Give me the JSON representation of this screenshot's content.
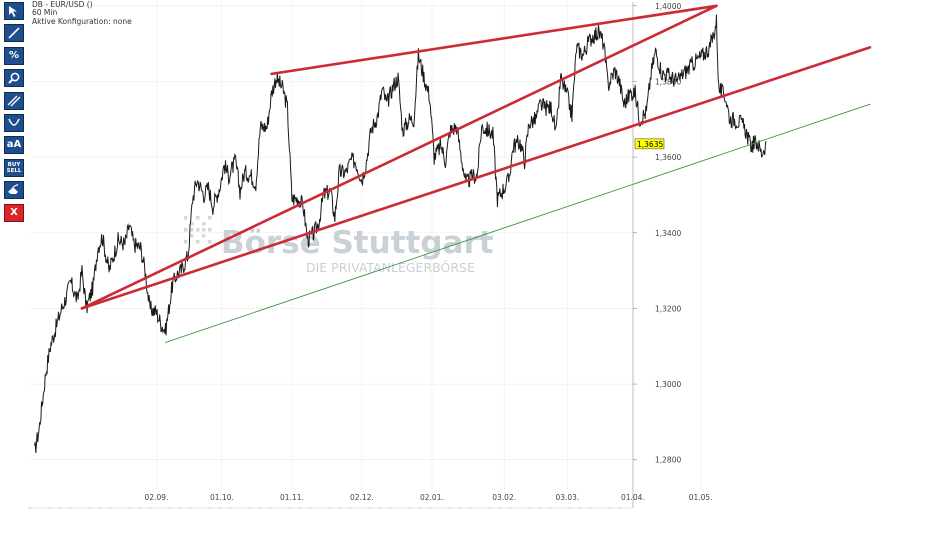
{
  "header": {
    "instrument": "DB - EUR/USD ()",
    "interval": "60 Min",
    "config": "Aktive Konfiguration: none"
  },
  "toolbar": {
    "tools": [
      {
        "name": "cursor-tool",
        "icon": "cursor-arrow-icon"
      },
      {
        "name": "line-tool",
        "icon": "line-icon"
      },
      {
        "name": "percent-tool",
        "icon": "percent-icon",
        "label": "%"
      },
      {
        "name": "zoom-tool",
        "icon": "magnifier-icon"
      },
      {
        "name": "channel-tool",
        "icon": "parallel-lines-icon"
      },
      {
        "name": "arc-tool",
        "icon": "arc-icon"
      },
      {
        "name": "text-tool",
        "icon": "text-icon",
        "label": "aA"
      },
      {
        "name": "buy-sell-tool",
        "icon": "buy-sell-icon",
        "label_top": "BUY",
        "label_bottom": "SELL"
      },
      {
        "name": "eraser-tool",
        "icon": "eraser-icon"
      },
      {
        "name": "close-tool",
        "icon": "close-icon",
        "label": "X"
      }
    ],
    "colors": {
      "button": "#1f4e8c",
      "close": "#d8262b"
    }
  },
  "watermark": {
    "brand": "Börse Stuttgart",
    "tagline": "DIE PRIVATANLEGERBÖRSE"
  },
  "chart_data": {
    "type": "line",
    "series": [
      {
        "points": [
          [
            "2013-07-10",
            1.282
          ],
          [
            "2013-07-12",
            1.288
          ],
          [
            "2013-07-15",
            1.303
          ],
          [
            "2013-07-17",
            1.31
          ],
          [
            "2013-07-19",
            1.314
          ],
          [
            "2013-07-22",
            1.32
          ],
          [
            "2013-07-24",
            1.323
          ],
          [
            "2013-07-26",
            1.327
          ],
          [
            "2013-07-29",
            1.322
          ],
          [
            "2013-07-31",
            1.33
          ],
          [
            "2013-08-02",
            1.32
          ],
          [
            "2013-08-05",
            1.326
          ],
          [
            "2013-08-07",
            1.336
          ],
          [
            "2013-08-09",
            1.339
          ],
          [
            "2013-08-12",
            1.33
          ],
          [
            "2013-08-14",
            1.334
          ],
          [
            "2013-08-16",
            1.338
          ],
          [
            "2013-08-19",
            1.337
          ],
          [
            "2013-08-21",
            1.342
          ],
          [
            "2013-08-23",
            1.337
          ],
          [
            "2013-08-26",
            1.336
          ],
          [
            "2013-08-28",
            1.33
          ],
          [
            "2013-08-30",
            1.32
          ],
          [
            "2013-09-02",
            1.319
          ],
          [
            "2013-09-04",
            1.316
          ],
          [
            "2013-09-06",
            1.314
          ],
          [
            "2013-09-09",
            1.326
          ],
          [
            "2013-09-11",
            1.329
          ],
          [
            "2013-09-13",
            1.33
          ],
          [
            "2013-09-16",
            1.334
          ],
          [
            "2013-09-18",
            1.349
          ],
          [
            "2013-09-20",
            1.354
          ],
          [
            "2013-09-23",
            1.35
          ],
          [
            "2013-09-25",
            1.352
          ],
          [
            "2013-09-27",
            1.347
          ],
          [
            "2013-09-30",
            1.352
          ],
          [
            "2013-10-02",
            1.358
          ],
          [
            "2013-10-04",
            1.355
          ],
          [
            "2013-10-07",
            1.359
          ],
          [
            "2013-10-09",
            1.351
          ],
          [
            "2013-10-11",
            1.356
          ],
          [
            "2013-10-14",
            1.355
          ],
          [
            "2013-10-16",
            1.353
          ],
          [
            "2013-10-18",
            1.368
          ],
          [
            "2013-10-21",
            1.368
          ],
          [
            "2013-10-23",
            1.377
          ],
          [
            "2013-10-25",
            1.381
          ],
          [
            "2013-10-28",
            1.378
          ],
          [
            "2013-10-30",
            1.373
          ],
          [
            "2013-11-01",
            1.349
          ],
          [
            "2013-11-04",
            1.349
          ],
          [
            "2013-11-06",
            1.347
          ],
          [
            "2013-11-08",
            1.338
          ],
          [
            "2013-11-11",
            1.34
          ],
          [
            "2013-11-13",
            1.343
          ],
          [
            "2013-11-15",
            1.35
          ],
          [
            "2013-11-18",
            1.351
          ],
          [
            "2013-11-20",
            1.344
          ],
          [
            "2013-11-22",
            1.356
          ],
          [
            "2013-11-25",
            1.356
          ],
          [
            "2013-11-27",
            1.359
          ],
          [
            "2013-11-29",
            1.359
          ],
          [
            "2013-12-02",
            1.354
          ],
          [
            "2013-12-04",
            1.359
          ],
          [
            "2013-12-06",
            1.367
          ],
          [
            "2013-12-09",
            1.371
          ],
          [
            "2013-12-11",
            1.378
          ],
          [
            "2013-12-13",
            1.374
          ],
          [
            "2013-12-16",
            1.379
          ],
          [
            "2013-12-18",
            1.381
          ],
          [
            "2013-12-20",
            1.367
          ],
          [
            "2013-12-23",
            1.37
          ],
          [
            "2013-12-25",
            1.37
          ],
          [
            "2013-12-27",
            1.387
          ],
          [
            "2013-12-30",
            1.38
          ],
          [
            "2014-01-01",
            1.376
          ],
          [
            "2014-01-03",
            1.36
          ],
          [
            "2014-01-06",
            1.363
          ],
          [
            "2014-01-08",
            1.359
          ],
          [
            "2014-01-10",
            1.367
          ],
          [
            "2014-01-13",
            1.368
          ],
          [
            "2014-01-15",
            1.36
          ],
          [
            "2014-01-17",
            1.353
          ],
          [
            "2014-01-20",
            1.355
          ],
          [
            "2014-01-22",
            1.355
          ],
          [
            "2014-01-24",
            1.368
          ],
          [
            "2014-01-27",
            1.367
          ],
          [
            "2014-01-29",
            1.366
          ],
          [
            "2014-01-31",
            1.349
          ],
          [
            "2014-02-03",
            1.352
          ],
          [
            "2014-02-05",
            1.354
          ],
          [
            "2014-02-07",
            1.363
          ],
          [
            "2014-02-10",
            1.364
          ],
          [
            "2014-02-12",
            1.359
          ],
          [
            "2014-02-14",
            1.369
          ],
          [
            "2014-02-17",
            1.37
          ],
          [
            "2014-02-19",
            1.374
          ],
          [
            "2014-02-21",
            1.373
          ],
          [
            "2014-02-24",
            1.373
          ],
          [
            "2014-02-26",
            1.366
          ],
          [
            "2014-02-28",
            1.381
          ],
          [
            "2014-03-03",
            1.376
          ],
          [
            "2014-03-05",
            1.371
          ],
          [
            "2014-03-07",
            1.389
          ],
          [
            "2014-03-10",
            1.387
          ],
          [
            "2014-03-12",
            1.39
          ],
          [
            "2014-03-14",
            1.392
          ],
          [
            "2014-03-17",
            1.393
          ],
          [
            "2014-03-19",
            1.39
          ],
          [
            "2014-03-21",
            1.379
          ],
          [
            "2014-03-24",
            1.383
          ],
          [
            "2014-03-26",
            1.38
          ],
          [
            "2014-03-28",
            1.374
          ],
          [
            "2014-03-31",
            1.377
          ],
          [
            "2014-04-02",
            1.377
          ],
          [
            "2014-04-04",
            1.37
          ],
          [
            "2014-04-07",
            1.372
          ],
          [
            "2014-04-09",
            1.382
          ],
          [
            "2014-04-11",
            1.388
          ],
          [
            "2014-04-14",
            1.382
          ],
          [
            "2014-04-16",
            1.382
          ],
          [
            "2014-04-18",
            1.381
          ],
          [
            "2014-04-21",
            1.38
          ],
          [
            "2014-04-23",
            1.382
          ],
          [
            "2014-04-25",
            1.383
          ],
          [
            "2014-04-28",
            1.385
          ],
          [
            "2014-04-30",
            1.386
          ],
          [
            "2014-05-02",
            1.387
          ],
          [
            "2014-05-05",
            1.389
          ],
          [
            "2014-05-07",
            1.393
          ],
          [
            "2014-05-08",
            1.396
          ],
          [
            "2014-05-09",
            1.378
          ],
          [
            "2014-05-12",
            1.376
          ],
          [
            "2014-05-14",
            1.37
          ],
          [
            "2014-05-16",
            1.37
          ],
          [
            "2014-05-19",
            1.369
          ],
          [
            "2014-05-21",
            1.367
          ],
          [
            "2014-05-23",
            1.363
          ],
          [
            "2014-05-26",
            1.364
          ],
          [
            "2014-05-28",
            1.361
          ],
          [
            "2014-05-30",
            1.3635
          ]
        ]
      }
    ],
    "last_value": "1,3635",
    "trendlines": [
      {
        "color": "#cc2b35",
        "from": [
          "2013-07-31",
          1.32
        ],
        "to": [
          "2014-05-08",
          1.4
        ]
      },
      {
        "color": "#cc2b35",
        "from": [
          "2013-07-31",
          1.32
        ],
        "to": [
          "2014-07-15",
          1.389
        ]
      },
      {
        "color": "#cc2b35",
        "from": [
          "2013-10-23",
          1.382
        ],
        "to": [
          "2014-05-08",
          1.4
        ]
      },
      {
        "color": "#3a9a3a",
        "from": [
          "2013-09-06",
          1.311
        ],
        "to": [
          "2014-07-15",
          1.374
        ]
      }
    ],
    "x_ticks": [
      {
        "date": "2013-09-02",
        "label": "02.09."
      },
      {
        "date": "2013-10-01",
        "label": "01.10."
      },
      {
        "date": "2013-11-01",
        "label": "01.11."
      },
      {
        "date": "2013-12-02",
        "label": "02.12."
      },
      {
        "date": "2014-01-02",
        "label": "02.01."
      },
      {
        "date": "2014-02-03",
        "label": "03.02."
      },
      {
        "date": "2014-03-03",
        "label": "03.03."
      },
      {
        "date": "2014-04-01",
        "label": "01.04."
      },
      {
        "date": "2014-05-01",
        "label": "01.05."
      }
    ],
    "y_ticks": [
      {
        "value": 1.28,
        "label": "1,2800"
      },
      {
        "value": 1.3,
        "label": "1,3000"
      },
      {
        "value": 1.32,
        "label": "1,3200"
      },
      {
        "value": 1.34,
        "label": "1,3400"
      },
      {
        "value": 1.36,
        "label": "1,3600"
      },
      {
        "value": 1.38,
        "label": "1,3800"
      },
      {
        "value": 1.4,
        "label": "1,4000"
      }
    ],
    "xlim": [
      "2013-07-08",
      "2014-07-15"
    ],
    "ylim": [
      1.272,
      1.401
    ],
    "grid": true,
    "y_axis_side": "right",
    "colors": {
      "price": "#1a1a1a",
      "last_label_bg": "#ffff00",
      "grid": "#d9d9d9"
    }
  }
}
